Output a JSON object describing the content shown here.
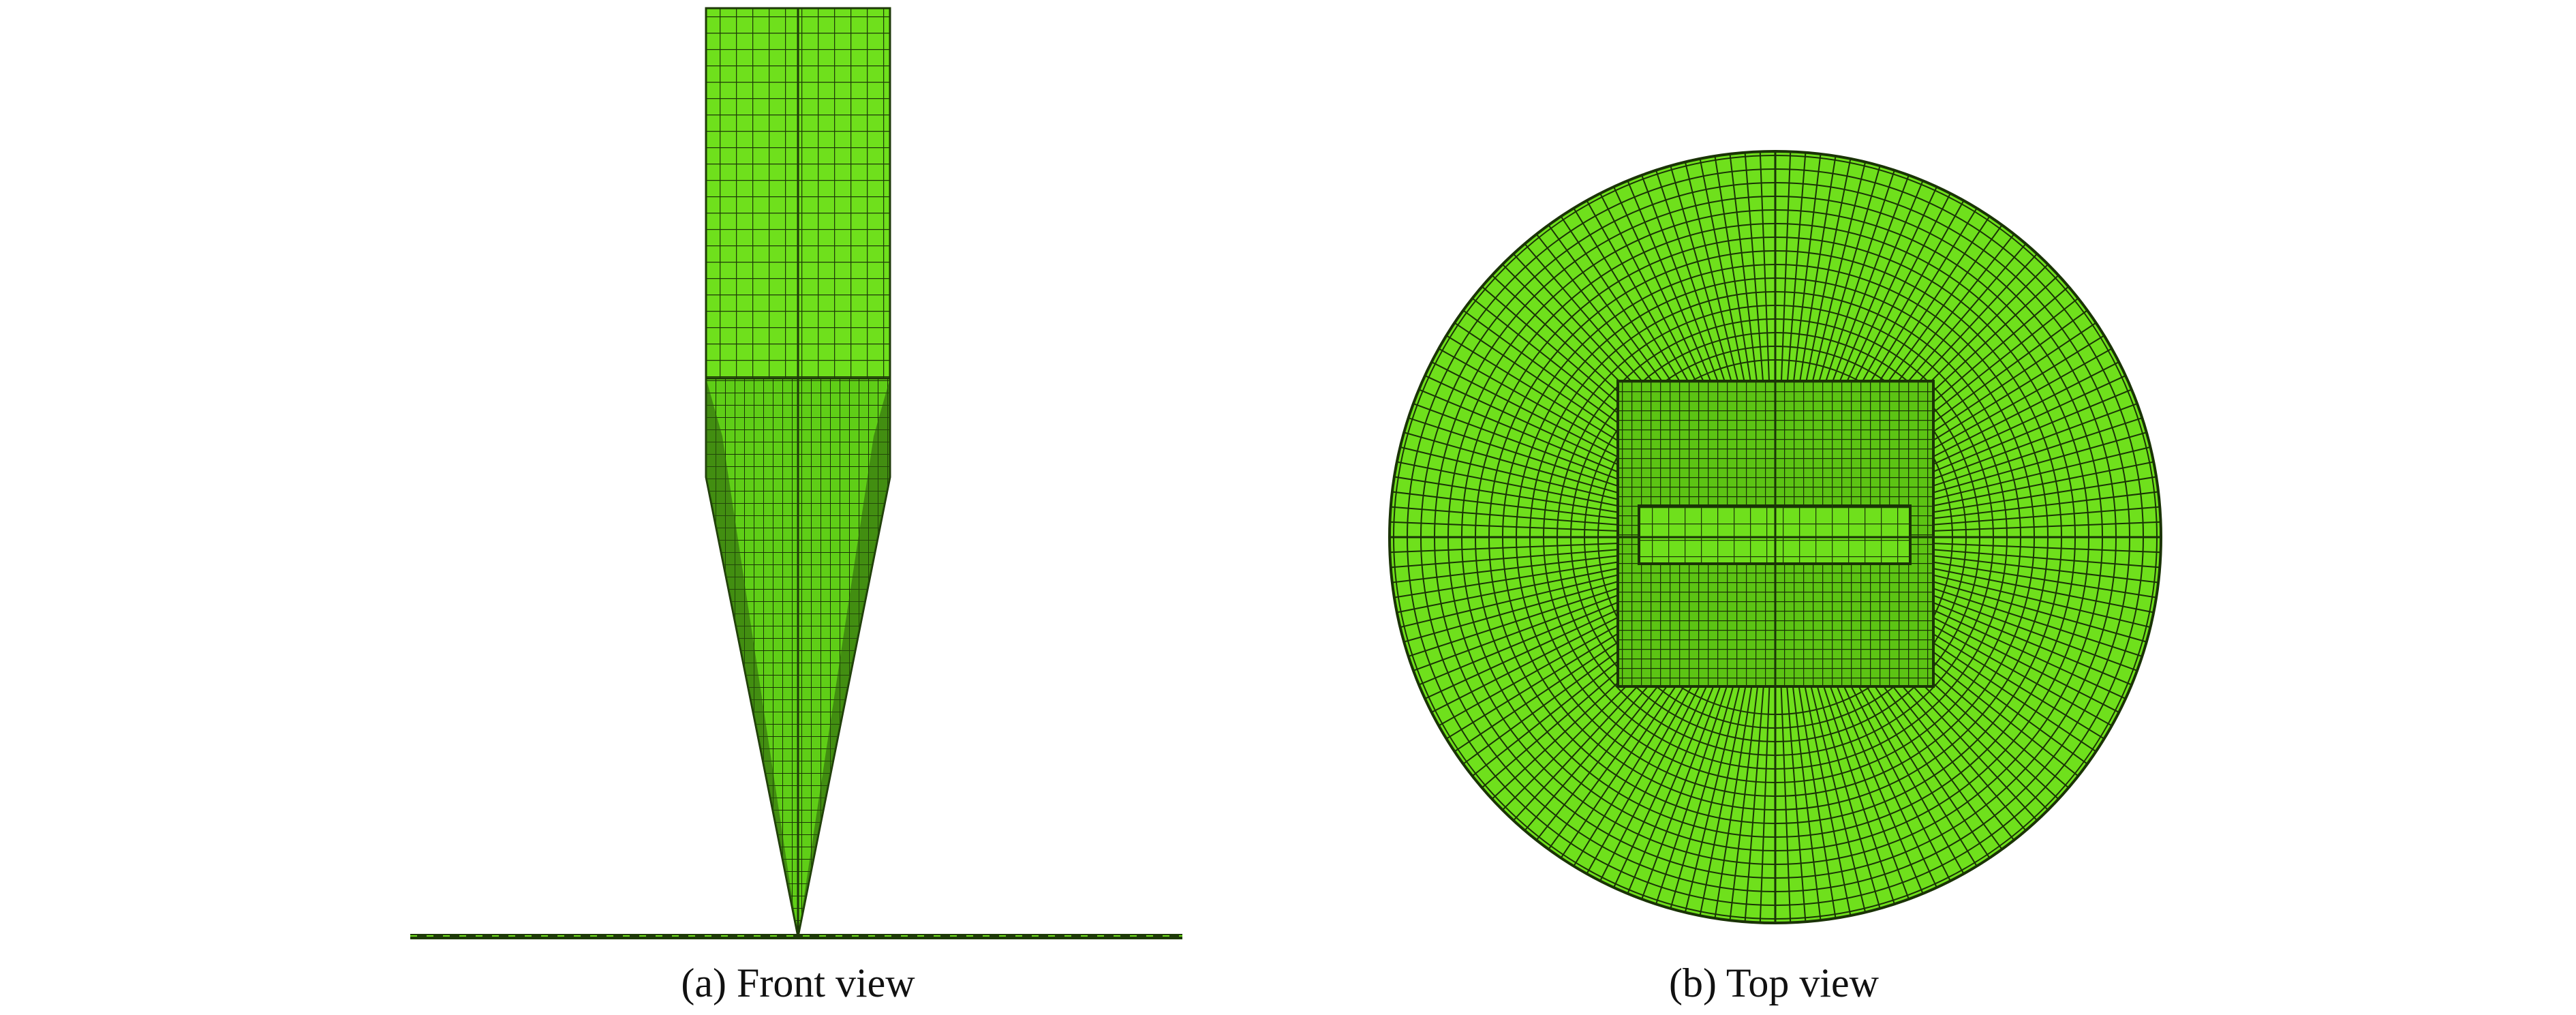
{
  "figure": {
    "panels": [
      {
        "caption": "(a) Front view"
      },
      {
        "caption": "(b) Top view"
      }
    ]
  }
}
